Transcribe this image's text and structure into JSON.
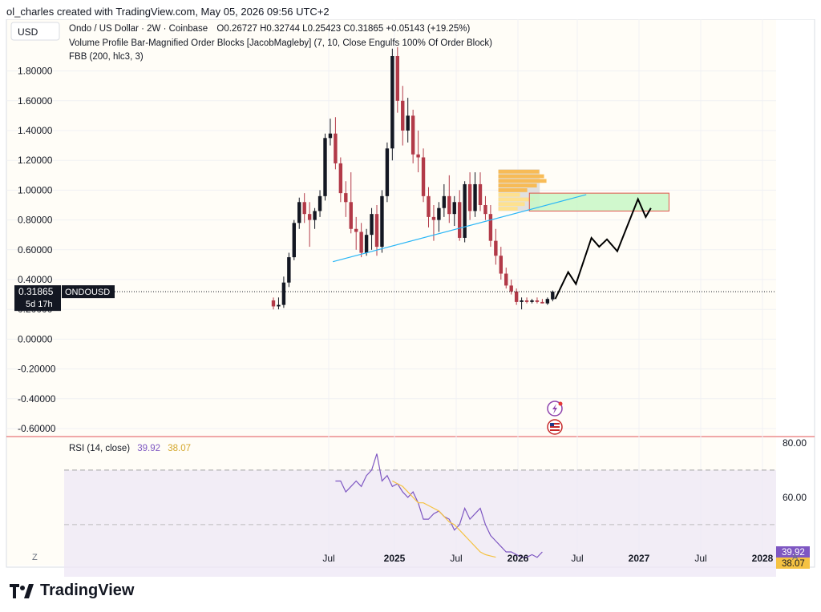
{
  "header": {
    "credit": "ol_charles created with TradingView.com, May 05, 2026 09:56 UTC+2"
  },
  "legend": {
    "symbol": "Ondo / US Dollar · 2W · Coinbase",
    "ohlc": "O0.26727 H0.32744 L0.25423 C0.31865 +0.05143 (+19.25%)",
    "indicator_1": "Volume Profile Bar-Magnified Order Blocks [JacobMagleby] (7, 10, Close Engulfs 100% Of Order Block)",
    "indicator_2": "FBB (200, hlc3, 3)",
    "currency": "USD"
  },
  "price_badge": {
    "price": "0.31865",
    "countdown": "5d 17h",
    "symbol": "ONDOUSD"
  },
  "rsi_legend": {
    "name": "RSI (14, close)",
    "value": "39.92",
    "ma_value": "38.07"
  },
  "x_axis_ticks": [
    "Jul",
    "2025",
    "Jul",
    "2026",
    "Jul",
    "2027",
    "Jul",
    "2028"
  ],
  "axis_buttons": {
    "left": "Z",
    "right": "A"
  },
  "footer": {
    "brand": "TradingView"
  },
  "colors": {
    "up": "#131722",
    "down": "#b23a48",
    "trendline": "#29b6f6",
    "zone_fill": "#c8f7c5",
    "zone_border": "#e0534a",
    "rsi": "#7e57c2",
    "rsi_ma": "#f5c242",
    "price_tag": "#131722"
  },
  "chart_data": [
    {
      "type": "candlestick",
      "title": "Ondo / US Dollar · 2W · Coinbase",
      "ylim": [
        -0.6,
        1.9
      ],
      "y_ticks": [
        1.8,
        1.6,
        1.4,
        1.2,
        1.0,
        0.8,
        0.6,
        0.4,
        0.2,
        0.0,
        -0.2,
        -0.4,
        -0.6
      ],
      "x_ticks": [
        "Jul",
        "2025",
        "Jul",
        "2026",
        "Jul",
        "2027",
        "Jul",
        "2028"
      ],
      "candles": [
        {
          "o": 0.26,
          "h": 0.28,
          "l": 0.2,
          "c": 0.22
        },
        {
          "o": 0.22,
          "h": 0.28,
          "l": 0.2,
          "c": 0.23
        },
        {
          "o": 0.23,
          "h": 0.42,
          "l": 0.21,
          "c": 0.38
        },
        {
          "o": 0.38,
          "h": 0.58,
          "l": 0.35,
          "c": 0.55
        },
        {
          "o": 0.55,
          "h": 0.8,
          "l": 0.53,
          "c": 0.78
        },
        {
          "o": 0.78,
          "h": 0.95,
          "l": 0.74,
          "c": 0.92
        },
        {
          "o": 0.92,
          "h": 0.98,
          "l": 0.78,
          "c": 0.84
        },
        {
          "o": 0.84,
          "h": 0.92,
          "l": 0.62,
          "c": 0.8
        },
        {
          "o": 0.8,
          "h": 0.88,
          "l": 0.74,
          "c": 0.86
        },
        {
          "o": 0.86,
          "h": 1.0,
          "l": 0.82,
          "c": 0.96
        },
        {
          "o": 0.96,
          "h": 1.38,
          "l": 0.93,
          "c": 1.35
        },
        {
          "o": 1.35,
          "h": 1.48,
          "l": 1.3,
          "c": 1.38
        },
        {
          "o": 1.38,
          "h": 1.49,
          "l": 1.14,
          "c": 1.18
        },
        {
          "o": 1.18,
          "h": 1.22,
          "l": 0.92,
          "c": 0.98
        },
        {
          "o": 0.98,
          "h": 1.06,
          "l": 0.82,
          "c": 0.92
        },
        {
          "o": 0.92,
          "h": 1.12,
          "l": 0.71,
          "c": 0.74
        },
        {
          "o": 0.74,
          "h": 0.82,
          "l": 0.6,
          "c": 0.72
        },
        {
          "o": 0.72,
          "h": 0.78,
          "l": 0.55,
          "c": 0.58
        },
        {
          "o": 0.58,
          "h": 0.74,
          "l": 0.56,
          "c": 0.7
        },
        {
          "o": 0.7,
          "h": 0.88,
          "l": 0.6,
          "c": 0.84
        },
        {
          "o": 0.84,
          "h": 0.9,
          "l": 0.56,
          "c": 0.62
        },
        {
          "o": 0.62,
          "h": 1.0,
          "l": 0.58,
          "c": 0.96
        },
        {
          "o": 0.96,
          "h": 1.32,
          "l": 0.92,
          "c": 1.28
        },
        {
          "o": 1.28,
          "h": 1.95,
          "l": 1.2,
          "c": 1.9
        },
        {
          "o": 1.9,
          "h": 1.96,
          "l": 1.52,
          "c": 1.6
        },
        {
          "o": 1.6,
          "h": 1.7,
          "l": 1.3,
          "c": 1.4
        },
        {
          "o": 1.4,
          "h": 1.62,
          "l": 1.32,
          "c": 1.5
        },
        {
          "o": 1.5,
          "h": 1.54,
          "l": 1.18,
          "c": 1.24
        },
        {
          "o": 1.24,
          "h": 1.4,
          "l": 1.12,
          "c": 1.22
        },
        {
          "o": 1.22,
          "h": 1.28,
          "l": 0.92,
          "c": 0.96
        },
        {
          "o": 0.96,
          "h": 1.02,
          "l": 0.75,
          "c": 0.82
        },
        {
          "o": 0.82,
          "h": 0.9,
          "l": 0.66,
          "c": 0.8
        },
        {
          "o": 0.8,
          "h": 0.92,
          "l": 0.72,
          "c": 0.88
        },
        {
          "o": 0.88,
          "h": 1.04,
          "l": 0.82,
          "c": 0.96
        },
        {
          "o": 0.96,
          "h": 1.1,
          "l": 0.78,
          "c": 0.84
        },
        {
          "o": 0.84,
          "h": 0.96,
          "l": 0.76,
          "c": 0.92
        },
        {
          "o": 0.92,
          "h": 1.0,
          "l": 0.66,
          "c": 0.68
        },
        {
          "o": 0.68,
          "h": 1.06,
          "l": 0.65,
          "c": 1.04
        },
        {
          "o": 1.04,
          "h": 1.12,
          "l": 0.8,
          "c": 0.86
        },
        {
          "o": 0.86,
          "h": 1.12,
          "l": 0.82,
          "c": 1.04
        },
        {
          "o": 1.04,
          "h": 1.12,
          "l": 0.86,
          "c": 0.9
        },
        {
          "o": 0.9,
          "h": 0.96,
          "l": 0.8,
          "c": 0.84
        },
        {
          "o": 0.84,
          "h": 0.9,
          "l": 0.62,
          "c": 0.66
        },
        {
          "o": 0.66,
          "h": 0.74,
          "l": 0.5,
          "c": 0.56
        },
        {
          "o": 0.56,
          "h": 0.62,
          "l": 0.4,
          "c": 0.44
        },
        {
          "o": 0.44,
          "h": 0.48,
          "l": 0.34,
          "c": 0.36
        },
        {
          "o": 0.36,
          "h": 0.4,
          "l": 0.3,
          "c": 0.32
        },
        {
          "o": 0.32,
          "h": 0.34,
          "l": 0.23,
          "c": 0.25
        },
        {
          "o": 0.25,
          "h": 0.28,
          "l": 0.2,
          "c": 0.26
        },
        {
          "o": 0.26,
          "h": 0.28,
          "l": 0.24,
          "c": 0.25
        },
        {
          "o": 0.25,
          "h": 0.27,
          "l": 0.24,
          "c": 0.26
        },
        {
          "o": 0.26,
          "h": 0.28,
          "l": 0.24,
          "c": 0.25
        },
        {
          "o": 0.25,
          "h": 0.27,
          "l": 0.24,
          "c": 0.24
        },
        {
          "o": 0.24,
          "h": 0.28,
          "l": 0.23,
          "c": 0.27
        },
        {
          "o": 0.267,
          "h": 0.327,
          "l": 0.254,
          "c": 0.319
        }
      ],
      "last_price": 0.31865,
      "trendline": [
        {
          "i": 11.5,
          "y": 0.52
        },
        {
          "i": 60.5,
          "y": 0.97
        }
      ],
      "projection": [
        {
          "i": 54.5,
          "y": 0.27
        },
        {
          "i": 57,
          "y": 0.45
        },
        {
          "i": 58.5,
          "y": 0.37
        },
        {
          "i": 61.5,
          "y": 0.68
        },
        {
          "i": 63,
          "y": 0.62
        },
        {
          "i": 64.5,
          "y": 0.67
        },
        {
          "i": 66.5,
          "y": 0.59
        },
        {
          "i": 70.5,
          "y": 0.94
        },
        {
          "i": 72,
          "y": 0.82
        },
        {
          "i": 73,
          "y": 0.88
        }
      ],
      "target_zone": {
        "i0": 49.5,
        "i1": 76.5,
        "y0": 0.86,
        "y1": 0.98
      },
      "volume_profile_zone": {
        "i0": 43.5,
        "i1": 51.5,
        "y0": 0.86,
        "y1": 1.14
      }
    },
    {
      "type": "line",
      "title": "RSI (14, close)",
      "ylim": [
        35,
        82
      ],
      "y_ticks": [
        80,
        60
      ],
      "bands": [
        70,
        50,
        30
      ],
      "series": [
        {
          "name": "RSI (14, close)",
          "start_index": 12,
          "values": [
            66,
            66,
            62,
            64,
            66,
            64,
            68,
            70,
            76,
            66,
            68,
            64,
            65,
            62,
            60,
            62,
            58,
            52,
            52,
            54,
            55,
            53,
            52,
            48,
            50,
            56,
            52,
            54,
            56,
            50,
            46,
            44,
            42,
            40,
            40,
            39,
            38,
            38,
            39,
            38,
            40
          ]
        },
        {
          "name": "MA",
          "start_index": 23,
          "values": [
            66,
            65,
            64,
            62,
            60,
            58,
            58,
            57,
            56,
            55,
            53,
            51,
            50,
            48,
            46,
            44,
            42,
            40,
            39,
            38.5,
            38.07
          ]
        }
      ]
    }
  ]
}
